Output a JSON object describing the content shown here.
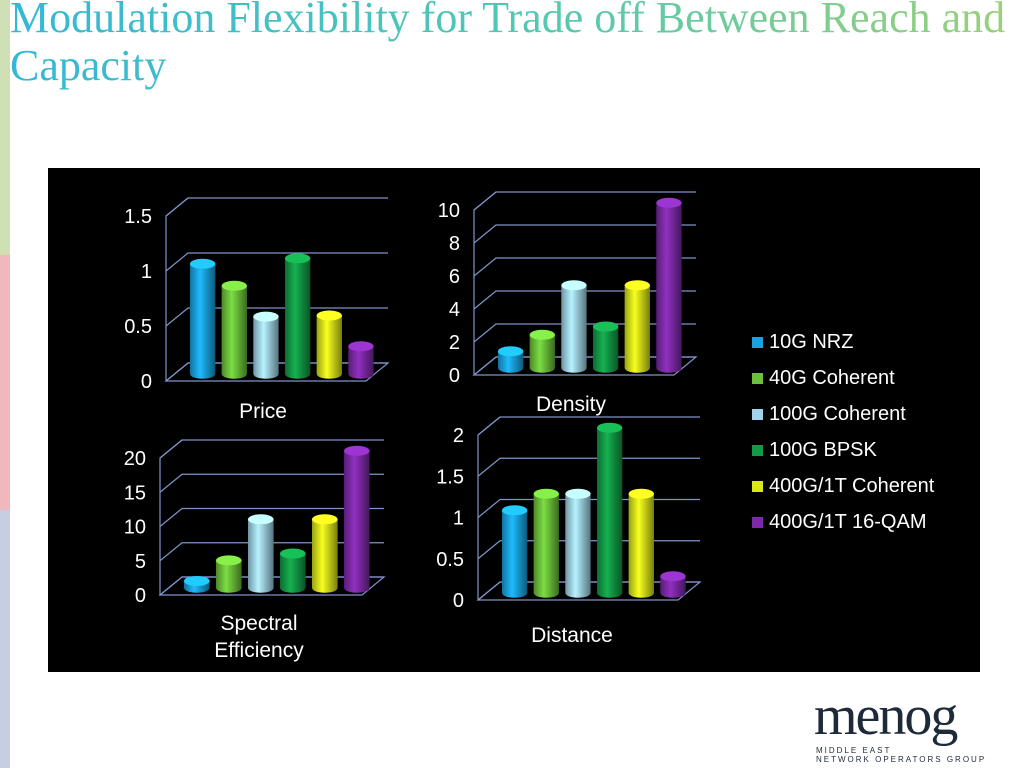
{
  "slide": {
    "title": "Modulation Flexibility for Trade off Between Reach and Capacity"
  },
  "colors": {
    "stripe_green": "#cfe0b4",
    "stripe_red": "#f0b8bc",
    "stripe_blue": "#c7cde3",
    "panel_bg": "#000000"
  },
  "legend": {
    "items": [
      {
        "label": "10G NRZ",
        "color": "#1aa3e0"
      },
      {
        "label": "40G Coherent",
        "color": "#6cc13a"
      },
      {
        "label": "100G Coherent",
        "color": "#9fd3ea"
      },
      {
        "label": "100G BPSK",
        "color": "#139a46"
      },
      {
        "label": "400G/1T Coherent",
        "color": "#d8e81a"
      },
      {
        "label": "400G/1T 16-QAM",
        "color": "#7d2aa8"
      }
    ]
  },
  "chart_data": [
    {
      "type": "bar",
      "title": "Price",
      "categories": [
        "10G NRZ",
        "40G Coherent",
        "100G Coherent",
        "100G BPSK",
        "400G/1T Coherent",
        "400G/1T 16-QAM"
      ],
      "values": [
        1.0,
        0.8,
        0.52,
        1.05,
        0.53,
        0.25
      ],
      "yticks": [
        "0",
        "0.5",
        "1",
        "1.5"
      ],
      "ylim": [
        0,
        1.5
      ]
    },
    {
      "type": "bar",
      "title": "Density",
      "categories": [
        "10G NRZ",
        "40G Coherent",
        "100G Coherent",
        "100G BPSK",
        "400G/1T Coherent",
        "400G/1T 16-QAM"
      ],
      "values": [
        1,
        2,
        5,
        2.5,
        5,
        10
      ],
      "yticks": [
        "0",
        "2",
        "4",
        "6",
        "8",
        "10"
      ],
      "ylim": [
        0,
        10
      ]
    },
    {
      "type": "bar",
      "title": "Spectral Efficiency",
      "title_lines": [
        "Spectral",
        "Efficiency"
      ],
      "categories": [
        "10G NRZ",
        "40G Coherent",
        "100G Coherent",
        "100G BPSK",
        "400G/1T Coherent",
        "400G/1T 16-QAM"
      ],
      "values": [
        1,
        4,
        10,
        5,
        10,
        20
      ],
      "yticks": [
        "0",
        "5",
        "10",
        "15",
        "20"
      ],
      "ylim": [
        0,
        20
      ]
    },
    {
      "type": "bar",
      "title": "Distance",
      "categories": [
        "10G NRZ",
        "40G Coherent",
        "100G Coherent",
        "100G BPSK",
        "400G/1T Coherent",
        "400G/1T 16-QAM"
      ],
      "values": [
        1,
        1.2,
        1.2,
        2,
        1.2,
        0.2
      ],
      "yticks": [
        "0",
        "0.5",
        "1",
        "1.5",
        "2"
      ],
      "ylim": [
        0,
        2
      ]
    }
  ],
  "logo": {
    "word": "menog",
    "line1": "MIDDLE EAST",
    "line2": "NETWORK OPERATORS GROUP"
  }
}
